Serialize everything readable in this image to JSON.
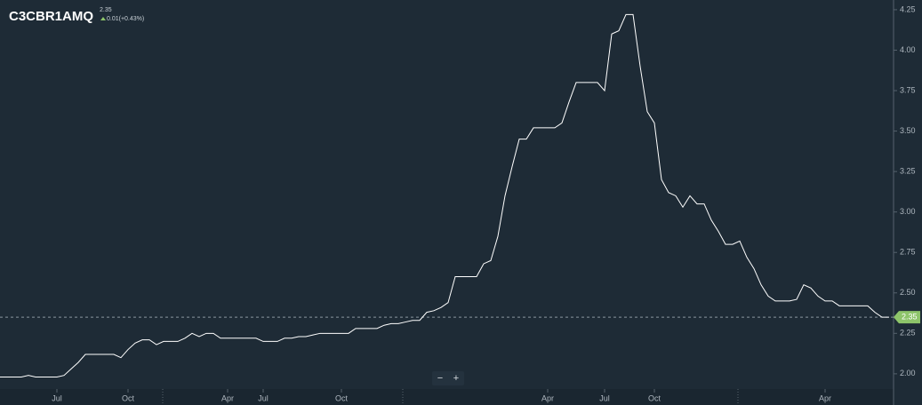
{
  "header": {
    "symbol": "C3CBR1AMQ",
    "price": "2.35",
    "change": "0.01(+0.43%)"
  },
  "controls": [
    "−",
    "+"
  ],
  "chart_data": {
    "type": "line",
    "categories": [
      null,
      null,
      null,
      null,
      null,
      null,
      null,
      null,
      "Jul",
      null,
      null,
      null,
      null,
      null,
      null,
      null,
      null,
      null,
      "Oct",
      null,
      null,
      null,
      null,
      null,
      null,
      null,
      null,
      null,
      null,
      null,
      null,
      null,
      "Apr",
      null,
      null,
      null,
      null,
      "Jul",
      null,
      null,
      null,
      null,
      null,
      null,
      null,
      null,
      null,
      null,
      "Oct",
      null,
      null,
      null,
      null,
      null,
      null,
      null,
      null,
      null,
      null,
      null,
      null,
      null,
      null,
      null,
      null,
      null,
      null,
      null,
      null,
      null,
      null,
      null,
      null,
      null,
      null,
      null,
      null,
      "Apr",
      null,
      null,
      null,
      null,
      null,
      null,
      null,
      "Jul",
      null,
      null,
      null,
      null,
      null,
      null,
      "Oct",
      null,
      null,
      null,
      null,
      null,
      null,
      null,
      null,
      null,
      null,
      null,
      null,
      null,
      null,
      null,
      null,
      null,
      null,
      null,
      null,
      null,
      null,
      null,
      "Apr",
      null,
      null,
      null,
      null,
      null,
      null,
      null,
      null,
      null
    ],
    "series": [
      {
        "color": "#ffffff",
        "values": [
          1.98,
          1.98,
          1.98,
          1.98,
          1.99,
          1.98,
          1.98,
          1.98,
          1.98,
          1.99,
          2.03,
          2.07,
          2.12,
          2.12,
          2.12,
          2.12,
          2.12,
          2.1,
          2.15,
          2.19,
          2.21,
          2.21,
          2.18,
          2.2,
          2.2,
          2.2,
          2.22,
          2.25,
          2.23,
          2.25,
          2.25,
          2.22,
          2.22,
          2.22,
          2.22,
          2.22,
          2.22,
          2.2,
          2.2,
          2.2,
          2.22,
          2.22,
          2.23,
          2.23,
          2.24,
          2.25,
          2.25,
          2.25,
          2.25,
          2.25,
          2.28,
          2.28,
          2.28,
          2.28,
          2.3,
          2.31,
          2.31,
          2.32,
          2.33,
          2.33,
          2.38,
          2.39,
          2.41,
          2.44,
          2.6,
          2.6,
          2.6,
          2.6,
          2.68,
          2.7,
          2.85,
          3.1,
          3.28,
          3.45,
          3.45,
          3.52,
          3.52,
          3.52,
          3.52,
          3.55,
          3.68,
          3.8,
          3.8,
          3.8,
          3.8,
          3.75,
          4.1,
          4.12,
          4.22,
          4.22,
          3.9,
          3.62,
          3.55,
          3.2,
          3.12,
          3.1,
          3.03,
          3.1,
          3.05,
          3.05,
          2.95,
          2.88,
          2.8,
          2.8,
          2.82,
          2.72,
          2.65,
          2.55,
          2.48,
          2.45,
          2.45,
          2.45,
          2.46,
          2.55,
          2.53,
          2.48,
          2.45,
          2.45,
          2.42,
          2.42,
          2.42,
          2.42,
          2.42,
          2.38,
          2.35,
          2.35
        ]
      }
    ],
    "last_value": 2.35,
    "last_color": "#8dc46a",
    "ylim": [
      1.895,
      4.31
    ],
    "yticks": [
      {
        "value": 2.0,
        "label": "2.00"
      },
      {
        "value": 2.25,
        "label": "2.25"
      },
      {
        "value": 2.5,
        "label": "2.50"
      },
      {
        "value": 2.75,
        "label": "2.75"
      },
      {
        "value": 3.0,
        "label": "3.00"
      },
      {
        "value": 3.25,
        "label": "3.25"
      },
      {
        "value": 3.5,
        "label": "3.50"
      },
      {
        "value": 3.75,
        "label": "3.75"
      },
      {
        "value": 4.0,
        "label": "4.00"
      },
      {
        "value": 4.25,
        "label": "4.25"
      }
    ]
  }
}
